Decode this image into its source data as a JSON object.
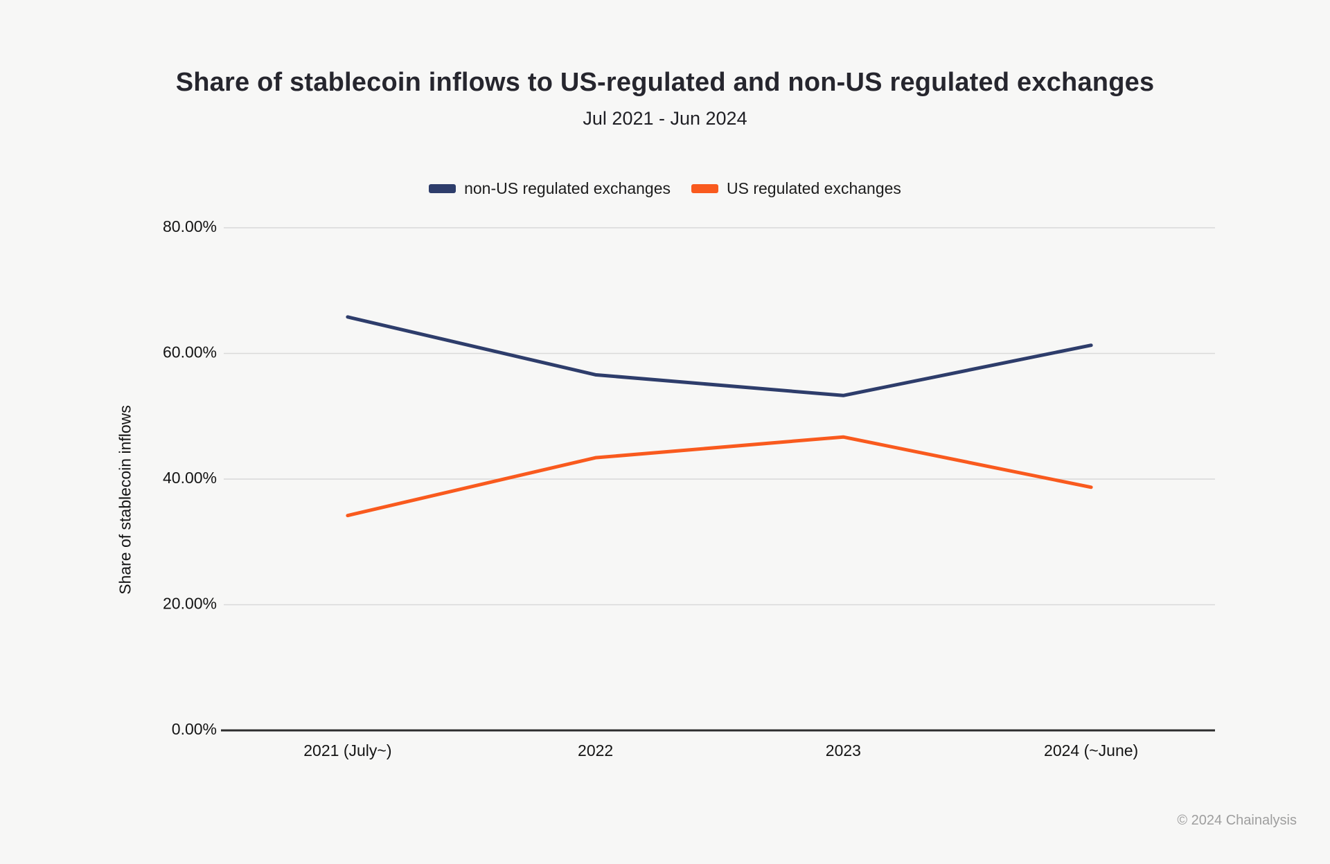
{
  "page": {
    "title": "Share of stablecoin inflows to US-regulated and non-US regulated exchanges",
    "subtitle": "Jul 2021 - Jun 2024",
    "footer": "© 2024 Chainalysis"
  },
  "colors": {
    "background": "#f7f7f6",
    "non_us_series": "#2e3d6b",
    "us_series": "#f95a1e",
    "gridline": "#d9d9d9",
    "axis_line": "#2d2d2d",
    "tick_text": "#141414",
    "footer_text": "#9e9e9e"
  },
  "chart_data": {
    "type": "line",
    "title": "Share of stablecoin inflows to US-regulated and non-US regulated exchanges",
    "subtitle": "Jul 2021 - Jun 2024",
    "categories": [
      "2021 (July~)",
      "2022",
      "2023",
      "2024 (~June)"
    ],
    "series": [
      {
        "name": "non-US regulated exchanges",
        "color": "#2e3d6b",
        "values": [
          65.8,
          56.6,
          53.3,
          61.3
        ]
      },
      {
        "name": "US regulated exchanges",
        "color": "#f95a1e",
        "values": [
          34.2,
          43.4,
          46.7,
          38.7
        ]
      }
    ],
    "xlabel": "",
    "ylabel": "Share of stablecoin inflows",
    "ylim": [
      0,
      80
    ],
    "yticks": [
      {
        "value": 0,
        "label": "0.00%"
      },
      {
        "value": 20,
        "label": "20.00%"
      },
      {
        "value": 40,
        "label": "40.00%"
      },
      {
        "value": 60,
        "label": "60.00%"
      },
      {
        "value": 80,
        "label": "80.00%"
      }
    ],
    "grid": true,
    "legend_position": "top-center"
  }
}
